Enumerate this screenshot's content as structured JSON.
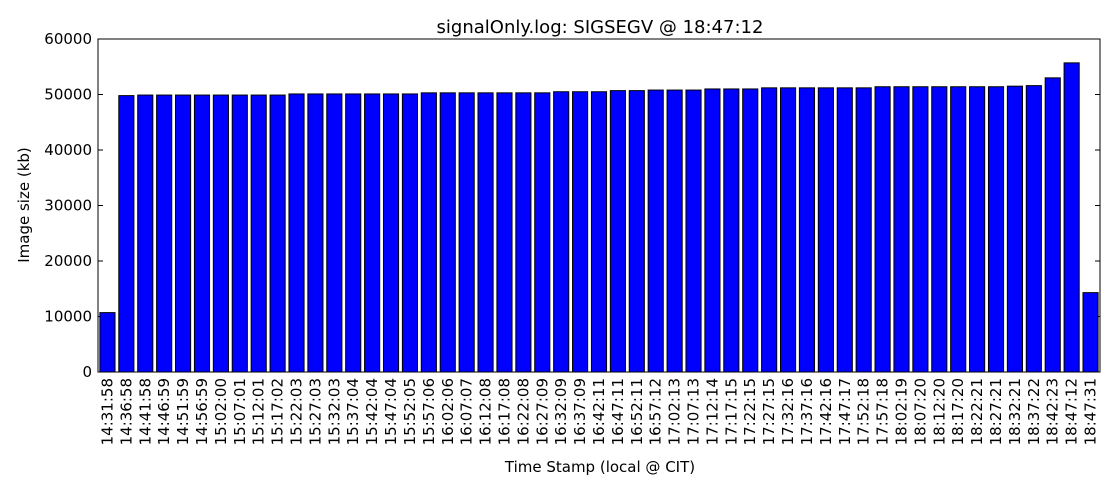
{
  "chart_data": {
    "type": "bar",
    "title": "signalOnly.log: SIGSEGV @ 18:47:12",
    "xlabel": "Time Stamp (local @ CIT)",
    "ylabel": "Image size (kb)",
    "categories": [
      "14:31:58",
      "14:36:58",
      "14:41:58",
      "14:46:59",
      "14:51:59",
      "14:56:59",
      "15:02:00",
      "15:07:01",
      "15:12:01",
      "15:17:02",
      "15:22:03",
      "15:27:03",
      "15:32:03",
      "15:37:04",
      "15:42:04",
      "15:47:04",
      "15:52:05",
      "15:57:06",
      "16:02:06",
      "16:07:07",
      "16:12:08",
      "16:17:08",
      "16:22:08",
      "16:27:09",
      "16:32:09",
      "16:37:09",
      "16:42:11",
      "16:47:11",
      "16:52:11",
      "16:57:12",
      "17:02:13",
      "17:07:13",
      "17:12:14",
      "17:17:15",
      "17:22:15",
      "17:27:15",
      "17:32:16",
      "17:37:16",
      "17:42:16",
      "17:47:17",
      "17:52:18",
      "17:57:18",
      "18:02:19",
      "18:07:20",
      "18:12:20",
      "18:17:20",
      "18:22:21",
      "18:27:21",
      "18:32:21",
      "18:37:22",
      "18:42:23",
      "18:47:12",
      "18:47:31"
    ],
    "values": [
      10700,
      49800,
      49900,
      49900,
      49900,
      49900,
      49900,
      49900,
      49900,
      49900,
      50100,
      50100,
      50100,
      50100,
      50100,
      50100,
      50100,
      50300,
      50300,
      50300,
      50300,
      50300,
      50300,
      50300,
      50500,
      50500,
      50500,
      50700,
      50700,
      50800,
      50800,
      50800,
      51000,
      51000,
      51000,
      51200,
      51200,
      51200,
      51200,
      51200,
      51200,
      51400,
      51400,
      51400,
      51400,
      51400,
      51400,
      51400,
      51500,
      51600,
      53000,
      55700,
      14300
    ],
    "color": "#0000ff",
    "ylim": [
      0,
      60000
    ],
    "yticks": [
      0,
      10000,
      20000,
      30000,
      40000,
      50000,
      60000
    ],
    "grid": false
  }
}
